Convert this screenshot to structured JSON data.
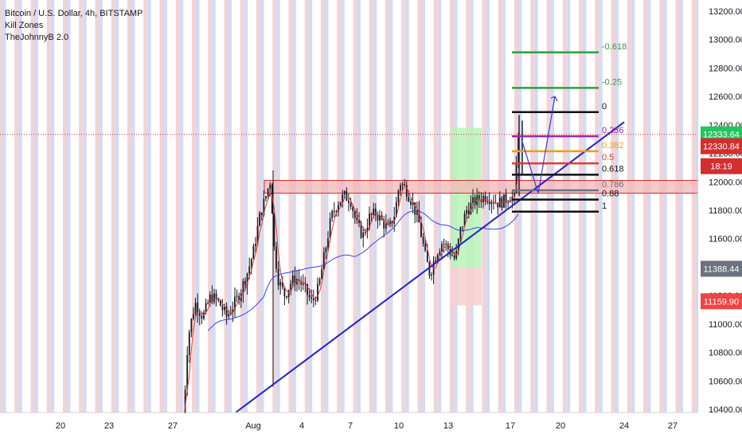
{
  "header": {
    "title": "Bitcoin / U.S. Dollar, 4h, BITSTAMP",
    "indicators": [
      "Kill Zones",
      "TheJohnnyB 2.0"
    ]
  },
  "colors": {
    "up": "#131722",
    "line_red": "#e53935",
    "line_blue": "#3344ee",
    "trend": "#2020cc",
    "zone_fill": "#f6b6b6",
    "zone_stroke": "#d32f2f",
    "killzone_red": "#f3d3d3",
    "killzone_blue": "#d6dbf2",
    "green_box": "#b9f5b9",
    "red_box": "#f8d0d0"
  },
  "chart_data": {
    "type": "candlestick",
    "ylim": [
      10400,
      13250
    ],
    "y_ticks": [
      "13200.00",
      "13000.00",
      "12800.00",
      "12600.00",
      "12400.00",
      "12200.00",
      "12000.00",
      "11800.00",
      "11600.00",
      "11400.00",
      "11200.00",
      "11000.00",
      "10800.00",
      "10600.00",
      "10400.00"
    ],
    "x_ticks": [
      {
        "label": "20",
        "x": 76
      },
      {
        "label": "23",
        "x": 137
      },
      {
        "label": "27",
        "x": 217
      },
      {
        "label": "Aug",
        "x": 318
      },
      {
        "label": "4",
        "x": 379
      },
      {
        "label": "7",
        "x": 440
      },
      {
        "label": "10",
        "x": 501
      },
      {
        "label": "13",
        "x": 563
      },
      {
        "label": "17",
        "x": 641
      },
      {
        "label": "20",
        "x": 704
      },
      {
        "label": "24",
        "x": 784
      },
      {
        "label": "27",
        "x": 845
      }
    ],
    "price_badges": [
      {
        "label": "12333.64",
        "value": 12333.64,
        "color": "#22c55e"
      },
      {
        "label": "12330.84",
        "value": 12250,
        "color": "#d32f2f"
      },
      {
        "label": "18:19",
        "value": 12110,
        "color": "#d32f2f"
      },
      {
        "label": "11388.44",
        "value": 11388.44,
        "color": "#6b7280"
      },
      {
        "label": "11159.90",
        "value": 11159.9,
        "color": "#ef4444"
      }
    ],
    "resistance_zone": [
      11920,
      12010
    ],
    "current_price": 12333.64,
    "fib_levels": [
      {
        "label": "-0.618",
        "value": 12910,
        "color": "#2e9e3f"
      },
      {
        "label": "-0.25",
        "value": 12660,
        "color": "#2e9e3f"
      },
      {
        "label": "0",
        "value": 12490,
        "color": "#111111"
      },
      {
        "label": "0.236",
        "value": 12320,
        "color": "#9c27b0"
      },
      {
        "label": "0.382",
        "value": 12215,
        "color": "#f59e0b"
      },
      {
        "label": "0.5",
        "value": 12130,
        "color": "#e53935"
      },
      {
        "label": "0.618",
        "value": 12050,
        "color": "#111111"
      },
      {
        "label": "0.786",
        "value": 11940,
        "color": "#6b7280"
      },
      {
        "label": "0.88",
        "value": 11875,
        "color": "#111111"
      },
      {
        "label": "1",
        "value": 11790,
        "color": "#111111"
      }
    ]
  }
}
